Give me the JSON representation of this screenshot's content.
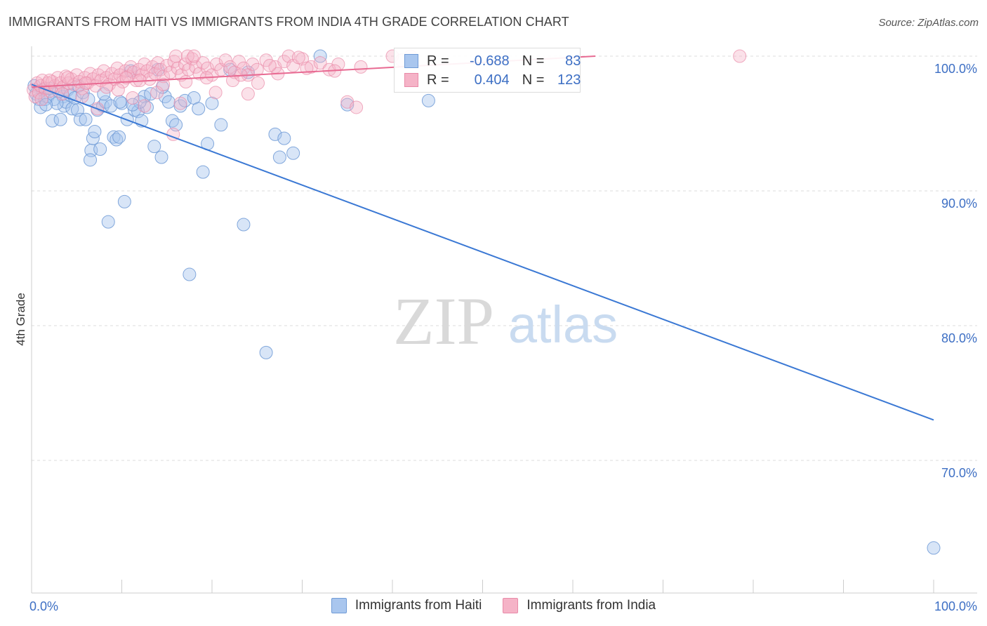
{
  "title": "IMMIGRANTS FROM HAITI VS IMMIGRANTS FROM INDIA 4TH GRADE CORRELATION CHART",
  "source": "Source: ZipAtlas.com",
  "watermark": {
    "zip": "ZIP",
    "atlas": "atlas"
  },
  "colors": {
    "haiti_fill": "#a9c6ee",
    "haiti_stroke": "#6f9ad6",
    "haiti_line": "#3a78d4",
    "india_fill": "#f5b3c7",
    "india_stroke": "#e98aa8",
    "india_line": "#e86a92",
    "axis_label": "#3d6fc4",
    "grid": "#dddddd"
  },
  "legend": {
    "r_label": "R =",
    "n_label": "N =",
    "haiti": {
      "r": "-0.688",
      "n": "83"
    },
    "india": {
      "r": "0.404",
      "n": "123"
    }
  },
  "bottom_legend": {
    "haiti": "Immigrants from Haiti",
    "india": "Immigrants from India"
  },
  "chart_data": {
    "type": "scatter",
    "title": "IMMIGRANTS FROM HAITI VS IMMIGRANTS FROM INDIA 4TH GRADE CORRELATION CHART",
    "xlabel": "",
    "ylabel": "4th Grade",
    "xlim": [
      0,
      100
    ],
    "ylim": [
      61,
      102
    ],
    "x_tick_labels": [
      "0.0%",
      "100.0%"
    ],
    "y_ticks": [
      100,
      90,
      80,
      70
    ],
    "y_tick_labels": [
      "100.0%",
      "90.0%",
      "80.0%",
      "70.0%"
    ],
    "grid": true,
    "series": [
      {
        "name": "Immigrants from Haiti",
        "r": -0.688,
        "n": 83,
        "trend": {
          "x": [
            0,
            100
          ],
          "y": [
            97.9,
            73.0
          ]
        },
        "points": [
          [
            0.3,
            97.8
          ],
          [
            0.5,
            97.2
          ],
          [
            0.8,
            96.8
          ],
          [
            1.0,
            96.2
          ],
          [
            1.2,
            97.5
          ],
          [
            1.5,
            96.8
          ],
          [
            1.8,
            97.0
          ],
          [
            2.0,
            97.6
          ],
          [
            2.3,
            95.2
          ],
          [
            2.5,
            96.8
          ],
          [
            3.0,
            97.4
          ],
          [
            3.2,
            95.3
          ],
          [
            3.5,
            97.0
          ],
          [
            3.6,
            96.3
          ],
          [
            3.8,
            96.6
          ],
          [
            4.0,
            97.5
          ],
          [
            4.3,
            97.1
          ],
          [
            4.5,
            96.1
          ],
          [
            4.8,
            96.9
          ],
          [
            5.1,
            96.0
          ],
          [
            5.4,
            95.3
          ],
          [
            5.7,
            97.3
          ],
          [
            6.0,
            95.3
          ],
          [
            6.3,
            96.8
          ],
          [
            6.6,
            93.0
          ],
          [
            6.8,
            93.9
          ],
          [
            7.0,
            94.4
          ],
          [
            7.3,
            96.0
          ],
          [
            7.6,
            93.1
          ],
          [
            7.9,
            96.3
          ],
          [
            8.2,
            96.6
          ],
          [
            8.5,
            87.7
          ],
          [
            8.8,
            96.3
          ],
          [
            9.1,
            94.0
          ],
          [
            9.4,
            93.8
          ],
          [
            9.7,
            94.0
          ],
          [
            10.0,
            96.5
          ],
          [
            10.3,
            89.2
          ],
          [
            10.6,
            95.3
          ],
          [
            11.0,
            98.9
          ],
          [
            11.4,
            96.0
          ],
          [
            11.8,
            95.9
          ],
          [
            12.2,
            95.2
          ],
          [
            12.5,
            97.0
          ],
          [
            12.8,
            96.2
          ],
          [
            13.2,
            97.2
          ],
          [
            13.6,
            93.3
          ],
          [
            14.0,
            99.0
          ],
          [
            14.4,
            92.5
          ],
          [
            14.8,
            97.0
          ],
          [
            15.2,
            96.6
          ],
          [
            15.6,
            95.2
          ],
          [
            16.0,
            94.9
          ],
          [
            16.5,
            96.3
          ],
          [
            17.0,
            96.7
          ],
          [
            17.5,
            83.8
          ],
          [
            18.0,
            96.9
          ],
          [
            18.5,
            96.1
          ],
          [
            19.0,
            91.4
          ],
          [
            19.5,
            93.5
          ],
          [
            20.0,
            96.5
          ],
          [
            21.0,
            94.9
          ],
          [
            22.0,
            99.0
          ],
          [
            23.5,
            87.5
          ],
          [
            24.0,
            98.8
          ],
          [
            26.0,
            78.0
          ],
          [
            27.0,
            94.2
          ],
          [
            27.5,
            92.5
          ],
          [
            28.0,
            93.9
          ],
          [
            29.0,
            92.8
          ],
          [
            32.0,
            100.0
          ],
          [
            35.0,
            96.4
          ],
          [
            44.0,
            96.7
          ],
          [
            2.8,
            96.5
          ],
          [
            5.2,
            97.8
          ],
          [
            8.0,
            97.2
          ],
          [
            12.0,
            96.6
          ],
          [
            14.5,
            97.7
          ],
          [
            1.6,
            96.4
          ],
          [
            6.5,
            92.3
          ],
          [
            11.2,
            96.4
          ],
          [
            9.8,
            96.6
          ],
          [
            100.0,
            63.5
          ]
        ]
      },
      {
        "name": "Immigrants from India",
        "r": 0.404,
        "n": 123,
        "trend": {
          "x": [
            0,
            62.5
          ],
          "y": [
            97.7,
            100.0
          ]
        },
        "points": [
          [
            0.2,
            97.5
          ],
          [
            0.4,
            97.0
          ],
          [
            0.6,
            98.0
          ],
          [
            0.8,
            97.3
          ],
          [
            1.0,
            97.8
          ],
          [
            1.2,
            98.2
          ],
          [
            1.5,
            97.6
          ],
          [
            1.8,
            98.0
          ],
          [
            2.0,
            97.4
          ],
          [
            2.3,
            98.1
          ],
          [
            2.6,
            97.8
          ],
          [
            2.9,
            98.4
          ],
          [
            3.2,
            98.0
          ],
          [
            3.5,
            97.7
          ],
          [
            3.8,
            98.5
          ],
          [
            4.1,
            98.0
          ],
          [
            4.4,
            98.3
          ],
          [
            4.7,
            97.9
          ],
          [
            5.0,
            98.6
          ],
          [
            5.3,
            98.1
          ],
          [
            5.6,
            97.6
          ],
          [
            5.9,
            98.4
          ],
          [
            6.2,
            98.0
          ],
          [
            6.5,
            98.7
          ],
          [
            6.8,
            98.3
          ],
          [
            7.1,
            97.8
          ],
          [
            7.4,
            98.6
          ],
          [
            7.7,
            98.2
          ],
          [
            8.0,
            98.9
          ],
          [
            8.3,
            98.4
          ],
          [
            8.6,
            97.9
          ],
          [
            8.9,
            98.7
          ],
          [
            9.2,
            98.3
          ],
          [
            9.5,
            99.1
          ],
          [
            9.8,
            98.6
          ],
          [
            10.1,
            98.1
          ],
          [
            10.4,
            98.9
          ],
          [
            10.7,
            98.5
          ],
          [
            11.0,
            99.2
          ],
          [
            11.3,
            98.8
          ],
          [
            11.6,
            98.2
          ],
          [
            11.9,
            99.0
          ],
          [
            12.2,
            98.6
          ],
          [
            12.5,
            99.4
          ],
          [
            12.8,
            98.9
          ],
          [
            13.1,
            98.3
          ],
          [
            13.4,
            99.2
          ],
          [
            13.7,
            98.7
          ],
          [
            14.0,
            99.5
          ],
          [
            14.3,
            99.0
          ],
          [
            14.6,
            98.5
          ],
          [
            15.0,
            99.3
          ],
          [
            15.4,
            98.8
          ],
          [
            15.8,
            99.6
          ],
          [
            16.2,
            99.1
          ],
          [
            16.6,
            98.6
          ],
          [
            17.0,
            99.4
          ],
          [
            17.4,
            99.0
          ],
          [
            17.8,
            99.8
          ],
          [
            18.2,
            99.2
          ],
          [
            18.6,
            98.7
          ],
          [
            19.0,
            99.5
          ],
          [
            19.5,
            99.1
          ],
          [
            20.0,
            98.6
          ],
          [
            20.5,
            99.4
          ],
          [
            21.0,
            99.0
          ],
          [
            21.5,
            99.7
          ],
          [
            22.0,
            99.2
          ],
          [
            22.5,
            98.8
          ],
          [
            23.0,
            99.6
          ],
          [
            23.5,
            99.1
          ],
          [
            24.0,
            98.6
          ],
          [
            24.5,
            99.4
          ],
          [
            25.0,
            99.0
          ],
          [
            26.0,
            99.7
          ],
          [
            27.0,
            99.2
          ],
          [
            28.0,
            99.6
          ],
          [
            28.5,
            100.0
          ],
          [
            29.0,
            99.3
          ],
          [
            30.0,
            99.8
          ],
          [
            31.0,
            99.2
          ],
          [
            32.0,
            99.5
          ],
          [
            33.0,
            99.0
          ],
          [
            34.0,
            99.4
          ],
          [
            35.0,
            96.6
          ],
          [
            36.0,
            96.2
          ],
          [
            36.5,
            99.2
          ],
          [
            40.0,
            100.0
          ],
          [
            41.0,
            99.7
          ],
          [
            42.0,
            100.0
          ],
          [
            78.5,
            100.0
          ],
          [
            16.0,
            100.0
          ],
          [
            17.3,
            100.0
          ],
          [
            18.0,
            100.0
          ],
          [
            12.5,
            96.3
          ],
          [
            16.5,
            96.5
          ],
          [
            15.7,
            94.2
          ],
          [
            11.2,
            96.9
          ],
          [
            9.6,
            97.5
          ],
          [
            13.9,
            97.3
          ],
          [
            24.0,
            97.2
          ],
          [
            20.4,
            97.3
          ],
          [
            7.3,
            96.1
          ],
          [
            5.6,
            97.0
          ],
          [
            3.4,
            97.2
          ],
          [
            1.1,
            96.8
          ],
          [
            2.0,
            98.2
          ],
          [
            4.0,
            98.4
          ],
          [
            6.0,
            98.0
          ],
          [
            8.3,
            97.7
          ],
          [
            10.5,
            98.4
          ],
          [
            12.0,
            98.2
          ],
          [
            14.6,
            97.9
          ],
          [
            17.1,
            98.1
          ],
          [
            19.4,
            98.4
          ],
          [
            22.3,
            98.2
          ],
          [
            25.1,
            98.0
          ],
          [
            27.3,
            98.7
          ],
          [
            30.5,
            99.1
          ],
          [
            33.6,
            98.9
          ],
          [
            23.2,
            98.6
          ],
          [
            26.4,
            99.3
          ],
          [
            29.6,
            99.9
          ]
        ]
      }
    ]
  }
}
